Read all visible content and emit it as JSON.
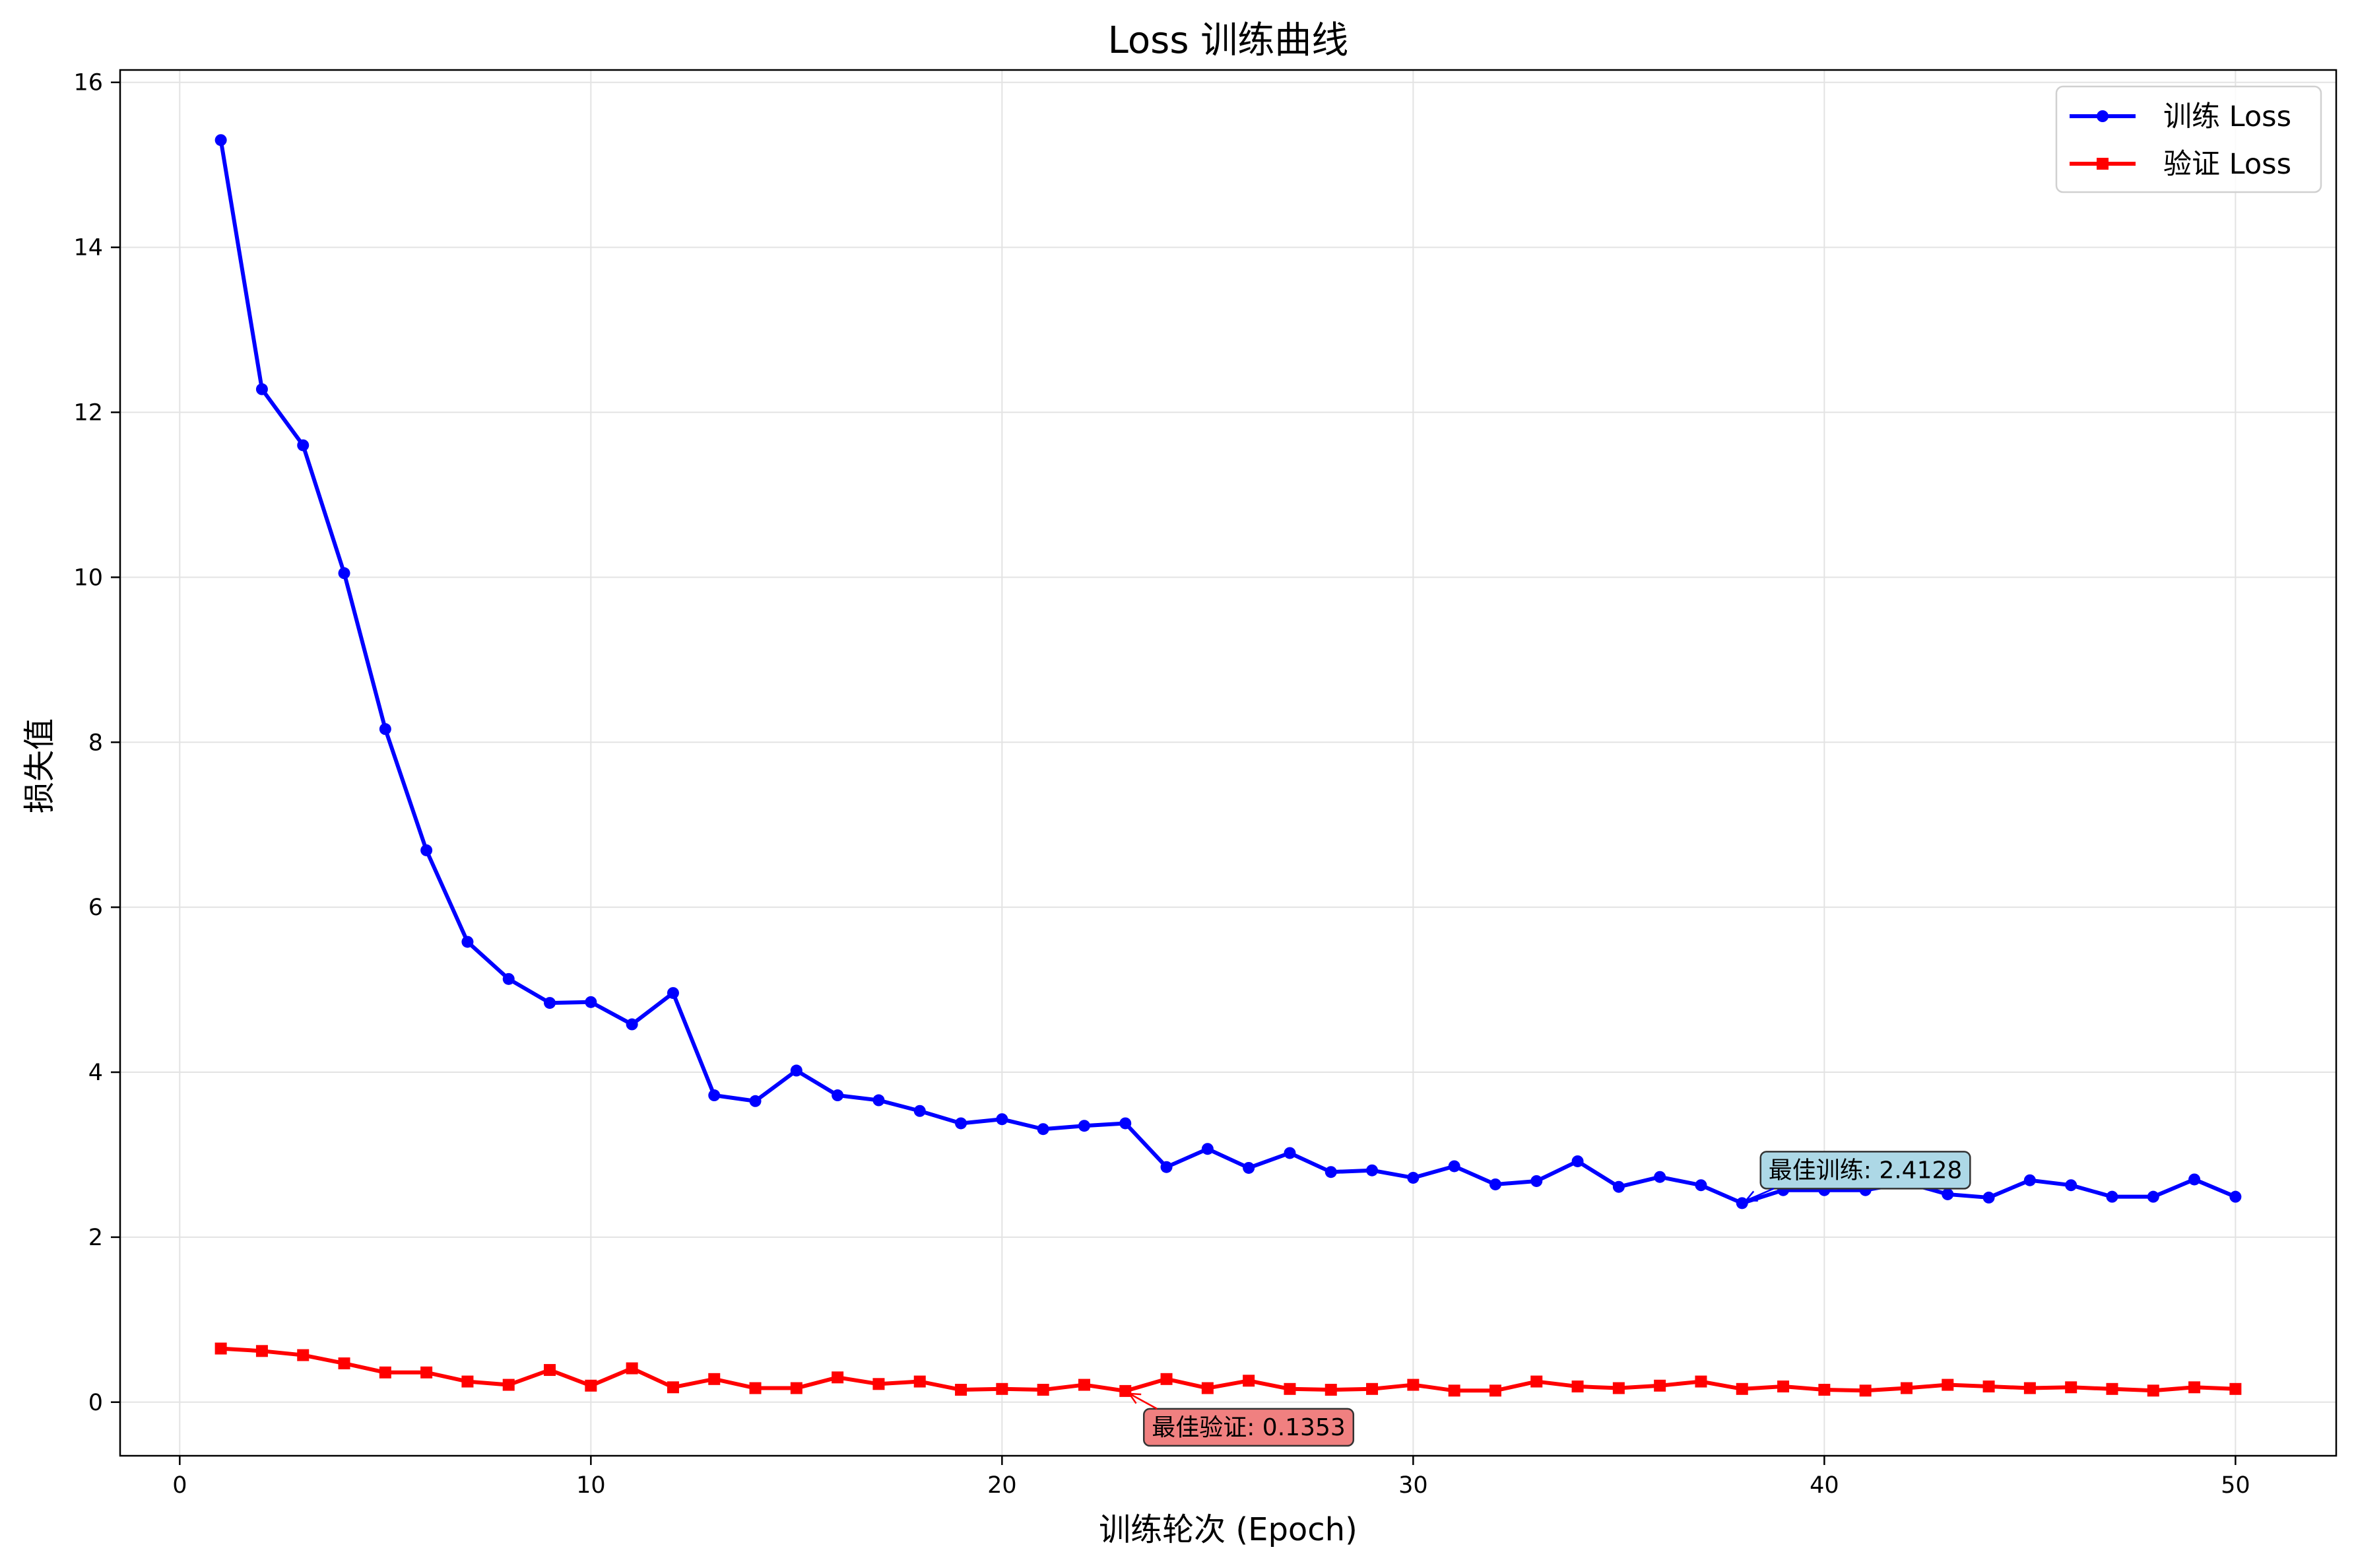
{
  "chart_data": {
    "type": "line",
    "title": "Loss 训练曲线",
    "xlabel": "训练轮次 (Epoch)",
    "ylabel": "损失值",
    "xlim": [
      -1.45,
      52.45
    ],
    "ylim": [
      -0.65,
      16.15
    ],
    "xticks": [
      0,
      10,
      20,
      30,
      40,
      50
    ],
    "yticks": [
      0,
      2,
      4,
      6,
      8,
      10,
      12,
      14,
      16
    ],
    "grid": true,
    "legend_position": "top-right",
    "x": [
      1,
      2,
      3,
      4,
      5,
      6,
      7,
      8,
      9,
      10,
      11,
      12,
      13,
      14,
      15,
      16,
      17,
      18,
      19,
      20,
      21,
      22,
      23,
      24,
      25,
      26,
      27,
      28,
      29,
      30,
      31,
      32,
      33,
      34,
      35,
      36,
      37,
      38,
      39,
      40,
      41,
      42,
      43,
      44,
      45,
      46,
      47,
      48,
      49,
      50
    ],
    "series": [
      {
        "name": "训练 Loss",
        "color": "#0000ff",
        "marker": "circle",
        "values": [
          15.3,
          12.28,
          11.6,
          10.05,
          8.16,
          6.69,
          5.58,
          5.13,
          4.84,
          4.85,
          4.58,
          4.96,
          3.72,
          3.65,
          4.02,
          3.72,
          3.66,
          3.53,
          3.38,
          3.43,
          3.31,
          3.35,
          3.38,
          2.85,
          3.07,
          2.84,
          3.02,
          2.79,
          2.81,
          2.72,
          2.86,
          2.64,
          2.68,
          2.92,
          2.61,
          2.73,
          2.63,
          2.4128,
          2.57,
          2.57,
          2.57,
          2.66,
          2.52,
          2.48,
          2.69,
          2.63,
          2.49,
          2.49,
          2.7,
          2.49
        ]
      },
      {
        "name": "验证 Loss",
        "color": "#ff0000",
        "marker": "square",
        "values": [
          0.65,
          0.62,
          0.57,
          0.47,
          0.36,
          0.36,
          0.25,
          0.21,
          0.39,
          0.2,
          0.41,
          0.18,
          0.28,
          0.17,
          0.17,
          0.3,
          0.22,
          0.25,
          0.15,
          0.16,
          0.15,
          0.21,
          0.1353,
          0.28,
          0.17,
          0.26,
          0.16,
          0.15,
          0.16,
          0.21,
          0.14,
          0.14,
          0.25,
          0.19,
          0.17,
          0.2,
          0.25,
          0.16,
          0.19,
          0.15,
          0.14,
          0.17,
          0.21,
          0.19,
          0.17,
          0.18,
          0.16,
          0.14,
          0.18,
          0.16
        ]
      }
    ],
    "annotations": [
      {
        "text": "最佳训练: 2.4128",
        "x": 38,
        "y": 2.4128,
        "box_color": "#add8e6",
        "arrow_color": "#0000ff"
      },
      {
        "text": "最佳验证: 0.1353",
        "x": 23,
        "y": 0.1353,
        "box_color": "#f08080",
        "arrow_color": "#ff0000"
      }
    ]
  }
}
